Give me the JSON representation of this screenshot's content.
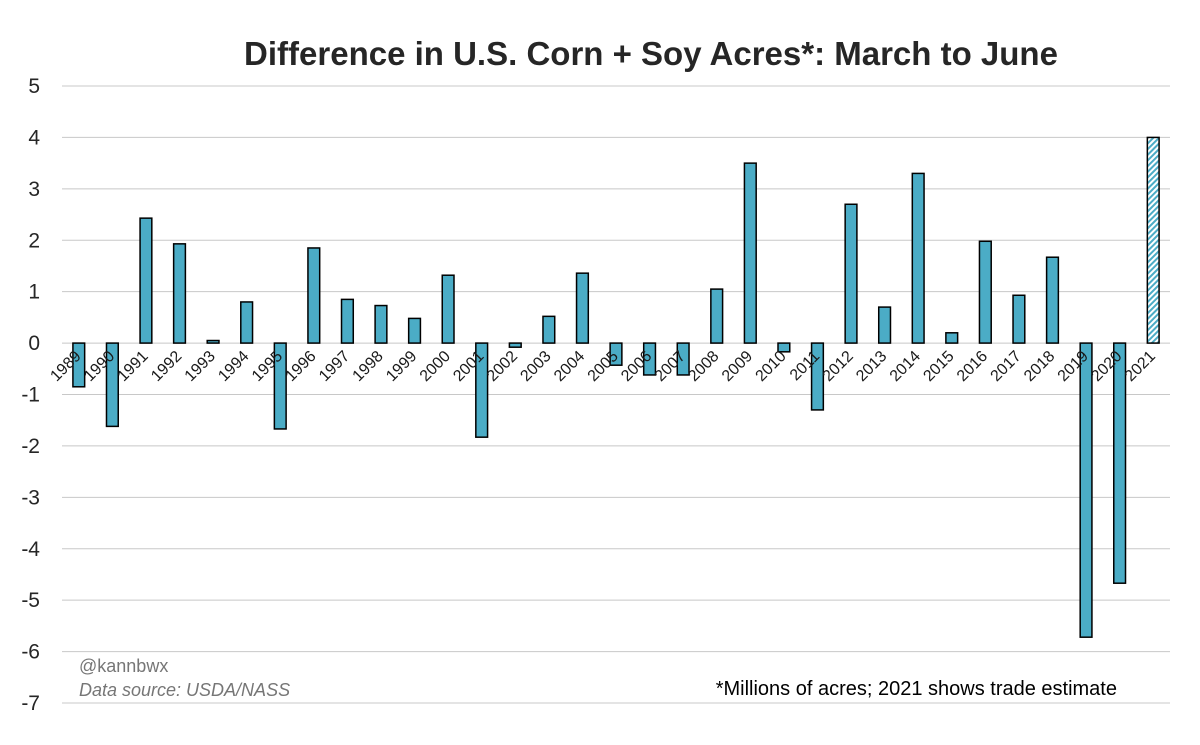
{
  "chart_data": {
    "type": "bar",
    "title": "Difference in U.S. Corn + Soy Acres*: March to June",
    "xlabel": "",
    "ylabel": "",
    "ylim": [
      -7,
      5
    ],
    "yticks": [
      5,
      4,
      3,
      2,
      1,
      0,
      -1,
      -2,
      -3,
      -4,
      -5,
      -6,
      -7
    ],
    "grid": true,
    "categories": [
      "1989",
      "1990",
      "1991",
      "1992",
      "1993",
      "1994",
      "1995",
      "1996",
      "1997",
      "1998",
      "1999",
      "2000",
      "2001",
      "2002",
      "2003",
      "2004",
      "2005",
      "2006",
      "2007",
      "2008",
      "2009",
      "2010",
      "2011",
      "2012",
      "2013",
      "2014",
      "2015",
      "2016",
      "2017",
      "2018",
      "2019",
      "2020",
      "2021"
    ],
    "values": [
      -0.85,
      -1.62,
      2.43,
      1.93,
      0.05,
      0.8,
      -1.67,
      1.85,
      0.85,
      0.73,
      0.48,
      1.32,
      -1.83,
      -0.08,
      0.52,
      1.36,
      -0.43,
      -0.62,
      -0.62,
      1.05,
      3.5,
      -0.17,
      -1.3,
      2.7,
      0.7,
      3.3,
      0.2,
      1.98,
      0.93,
      1.67,
      -5.72,
      -4.67,
      4.0
    ],
    "estimate_categories": [
      "2021"
    ],
    "colors": {
      "bar": "#4bacc6",
      "estimate_pattern": "#4bacc6",
      "outline": "#000000",
      "grid": "#c8c8c8"
    },
    "annotations": {
      "handle": "@kannbwx",
      "source": "Data source: USDA/NASS",
      "footnote": "*Millions of acres; 2021 shows trade estimate"
    }
  }
}
